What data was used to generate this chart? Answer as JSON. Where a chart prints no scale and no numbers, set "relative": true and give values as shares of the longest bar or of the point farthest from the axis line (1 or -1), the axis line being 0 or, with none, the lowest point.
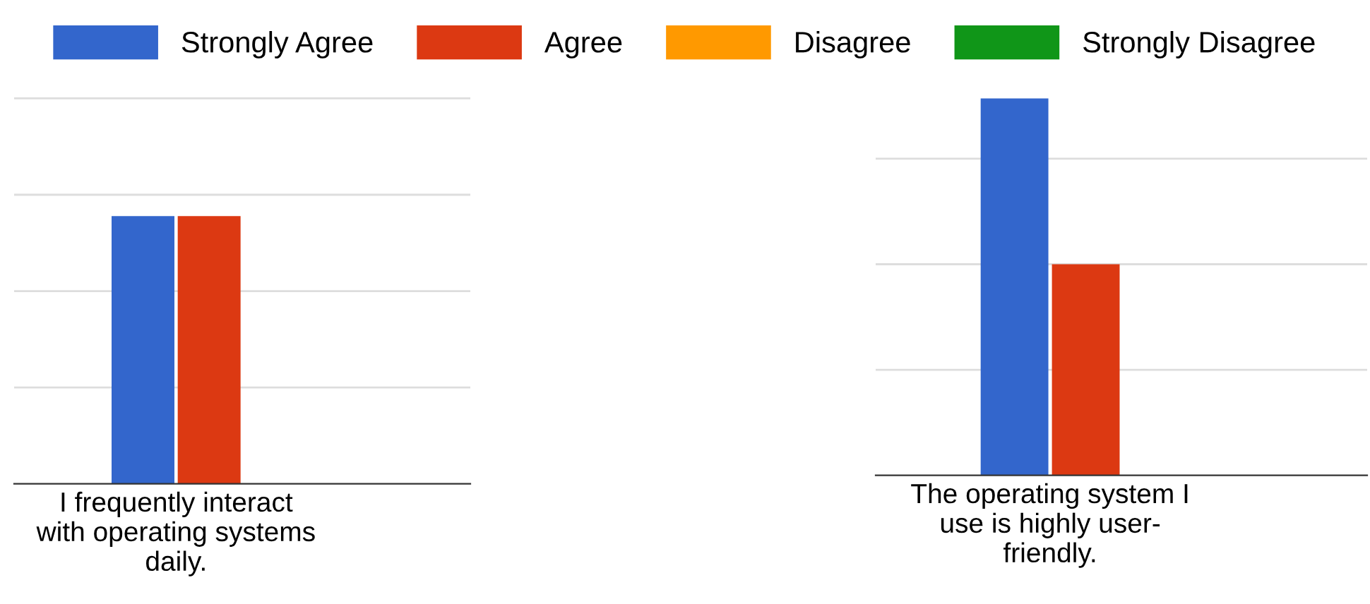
{
  "chart_data": [
    {
      "type": "bar",
      "relative": true,
      "categories": [
        "I frequently interact\nwith operating systems\ndaily."
      ],
      "tick_labels": "x",
      "legend": "top",
      "series": [
        {
          "name": "Strongly Agree",
          "color": "#3366cc",
          "values": [
            1
          ]
        },
        {
          "name": "Agree",
          "color": "#dc3912",
          "values": [
            1
          ]
        },
        {
          "name": "Disagree",
          "color": "#ff9900",
          "values": [
            null
          ]
        },
        {
          "name": "Strongly Disagree",
          "color": "#109618",
          "values": [
            null
          ]
        }
      ],
      "ref_lines": [
        {
          "axis": "y",
          "value": 0.36,
          "color": "#dddddd"
        },
        {
          "axis": "y",
          "value": 0.72,
          "color": "#dddddd"
        },
        {
          "axis": "y",
          "value": 1.08,
          "color": "#dddddd"
        },
        {
          "axis": "y",
          "value": 1.44,
          "color": "#dddddd"
        }
      ]
    },
    {
      "type": "bar",
      "relative": true,
      "categories": [
        "The operating system I\nuse is highly user-\nfriendly."
      ],
      "tick_labels": "x",
      "series": [
        {
          "color": "#3366cc",
          "values": [
            1
          ]
        },
        {
          "color": "#dc3912",
          "values": [
            0.56
          ]
        },
        {
          "color": "#ff9900",
          "values": [
            null
          ]
        },
        {
          "color": "#109618",
          "values": [
            null
          ]
        }
      ],
      "ref_lines": [
        {
          "axis": "y",
          "value": 0.28,
          "color": "#dddddd"
        },
        {
          "axis": "y",
          "value": 0.56,
          "color": "#dddddd"
        },
        {
          "axis": "y",
          "value": 0.84,
          "color": "#dddddd"
        }
      ]
    }
  ]
}
